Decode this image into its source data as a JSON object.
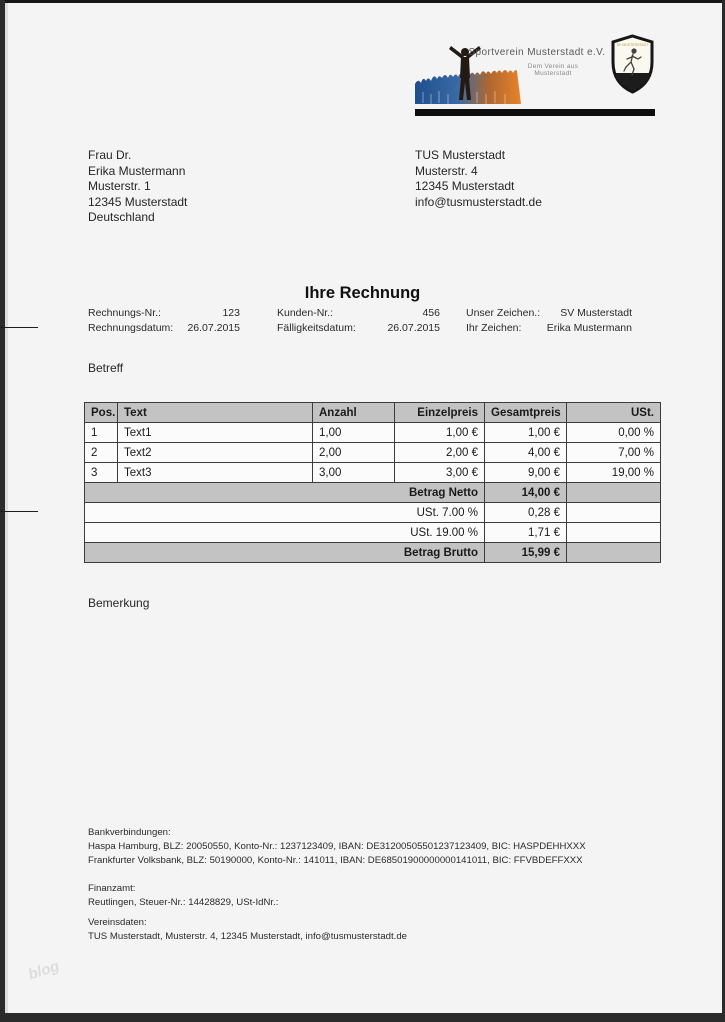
{
  "logo": {
    "org_name": "Sportverein Musterstadt e.V.",
    "tagline": "Dem Verein aus Musterstadt",
    "crest": "club-crest-runner-shield",
    "crowd_image": "crowd-silhouette-blue-orange"
  },
  "recipient": {
    "lines": [
      "Frau Dr.",
      "Erika Mustermann",
      "Musterstr. 1",
      "12345 Musterstadt",
      "Deutschland"
    ]
  },
  "sender": {
    "lines": [
      "TUS Musterstadt",
      "Musterstr. 4",
      "12345 Musterstadt",
      "info@tusmusterstadt.de"
    ]
  },
  "title": "Ihre Rechnung",
  "meta": {
    "rows": [
      [
        {
          "label": "Rechnungs-Nr.:",
          "value": "123"
        },
        {
          "label": "Kunden-Nr.:",
          "value": "456"
        },
        {
          "label": "Unser Zeichen.:",
          "value": "SV Musterstadt"
        }
      ],
      [
        {
          "label": "Rechnungsdatum:",
          "value": "26.07.2015"
        },
        {
          "label": "Fälligkeitsdatum:",
          "value": "26.07.2015"
        },
        {
          "label": "Ihr Zeichen:",
          "value": "Erika Mustermann"
        }
      ]
    ]
  },
  "betreff_label": "Betreff",
  "bemerkung_label": "Bemerkung",
  "table": {
    "headers": [
      "Pos.",
      "Text",
      "Anzahl",
      "Einzelpreis",
      "Gesamtpreis",
      "USt."
    ],
    "rows": [
      [
        "1",
        "Text1",
        "1,00",
        "1,00 €",
        "1,00 €",
        "0,00 %"
      ],
      [
        "2",
        "Text2",
        "2,00",
        "2,00 €",
        "4,00 €",
        "7,00 %"
      ],
      [
        "3",
        "Text3",
        "3,00",
        "3,00 €",
        "9,00 €",
        "19,00 %"
      ]
    ],
    "summary": [
      {
        "label": "Betrag Netto",
        "value": "14,00 €",
        "emphasis": true
      },
      {
        "label": "USt. 7.00 %",
        "value": "0,28 €",
        "emphasis": false
      },
      {
        "label": "USt. 19.00 %",
        "value": "1,71 €",
        "emphasis": false
      },
      {
        "label": "Betrag Brutto",
        "value": "15,99 €",
        "emphasis": true
      }
    ]
  },
  "footer": {
    "bank_heading": "Bankverbindungen:",
    "bank_lines": [
      "Haspa Hamburg, BLZ: 20050550, Konto-Nr.: 1237123409, IBAN: DE31200505501237123409, BIC: HASPDEHHXXX",
      "Frankfurter Volksbank, BLZ: 50190000, Konto-Nr.: 141011, IBAN: DE68501900000000141011, BIC: FFVBDEFFXXX"
    ],
    "tax_heading": "Finanzamt:",
    "tax_lines": [
      "Reutlingen, Steuer-Nr.: 14428829, USt-IdNr.:"
    ],
    "club_heading": "Vereinsdaten:",
    "club_lines": [
      "TUS Musterstadt, Musterstr. 4, 12345 Musterstadt, info@tusmusterstadt.de"
    ]
  },
  "watermark": "blog",
  "colors": {
    "page_bg": "#f4f4f4",
    "table_header_bg": "#c3c3c3",
    "summary_bg": "#c3c3c3",
    "frame": "#2b2b2b",
    "crowd_blue": "#2a5a9a",
    "crowd_orange": "#e8832a",
    "logo_bar": "#0e0e0e"
  }
}
